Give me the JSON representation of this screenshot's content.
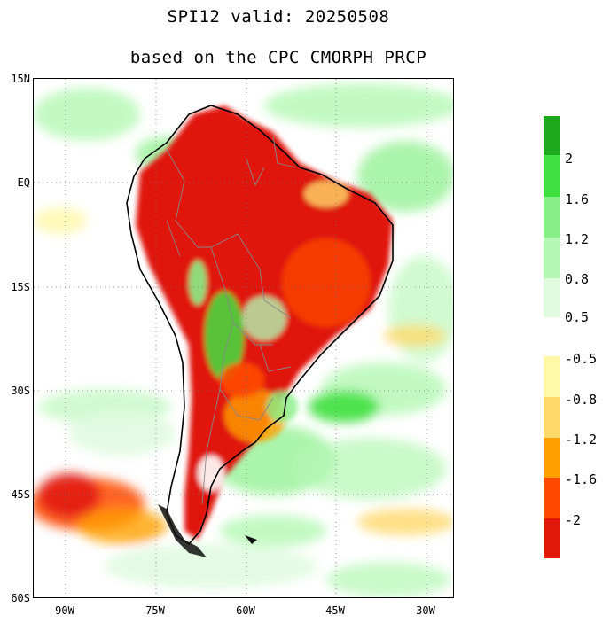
{
  "title_line1": "SPI12   valid: 20250508",
  "title_line2": "based on the CPC CMORPH PRCP",
  "y_axis_labels": [
    "15N",
    "EQ",
    "15S",
    "30S",
    "45S",
    "60S"
  ],
  "x_axis_labels": [
    "90W",
    "75W",
    "60W",
    "45W",
    "30W"
  ],
  "colorbar_wet": {
    "colors": [
      "#1ea81e",
      "#3fe03f",
      "#88ef88",
      "#b3f7b3",
      "#e0fbe0"
    ],
    "labels": [
      "2",
      "1.6",
      "1.2",
      "0.8",
      "0.5"
    ]
  },
  "colorbar_dry": {
    "colors": [
      "#fff8a8",
      "#ffd86a",
      "#ffa000",
      "#ff4a00",
      "#e0180a"
    ],
    "labels": [
      "-0.5",
      "-0.8",
      "-1.2",
      "-1.6",
      "-2"
    ]
  },
  "colors": {
    "land_dry_core": "#e0180a",
    "land_dry_mid": "#ff4a00",
    "dry_light": "#ffa000",
    "wet_light": "#b3f7b3",
    "wet_mid": "#88ef88",
    "wet_strong": "#3fe03f",
    "wet_dark": "#1ea81e"
  }
}
